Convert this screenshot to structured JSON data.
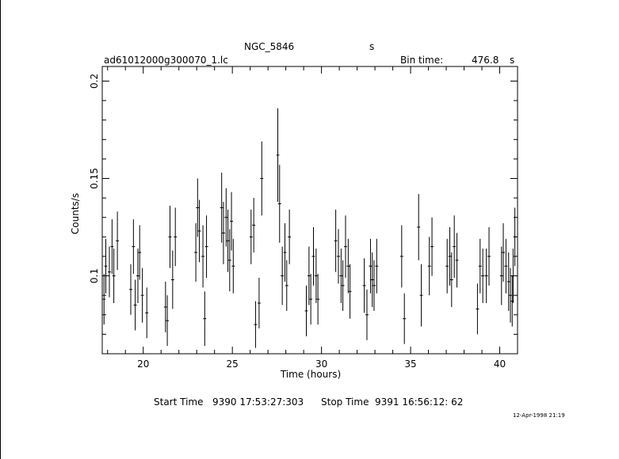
{
  "header": {
    "object": "NGC_5846",
    "object_unit": "s",
    "filename": "ad61012000g300070_1.lc",
    "bin_label": "Bin time:",
    "bin_value": "476.8",
    "bin_unit": "s"
  },
  "footer": {
    "start_label": "Start Time",
    "start_value": "9390 17:53:27:303",
    "stop_label": "Stop Time",
    "stop_value": "9391 16:56:12: 62",
    "stamp": "12-Apr-1998 21:19"
  },
  "chart_data": {
    "type": "scatter",
    "xlabel": "Time (hours)",
    "ylabel": "Counts/s",
    "xlim": [
      17.7,
      41.0
    ],
    "ylim": [
      0.06,
      0.2075
    ],
    "xticks": [
      20,
      25,
      30,
      35,
      40
    ],
    "yticks": [
      0.1,
      0.15,
      0.2
    ],
    "ytick_labels": [
      "0.1",
      "0.15",
      "0.2"
    ],
    "grid": false,
    "points": [
      [
        17.8,
        0.088,
        0.013
      ],
      [
        17.9,
        0.105,
        0.014
      ],
      [
        18.1,
        0.102,
        0.013
      ],
      [
        18.25,
        0.115,
        0.014
      ],
      [
        18.35,
        0.1,
        0.014
      ],
      [
        18.55,
        0.118,
        0.015
      ],
      [
        19.3,
        0.093,
        0.013
      ],
      [
        19.45,
        0.115,
        0.014
      ],
      [
        19.55,
        0.085,
        0.013
      ],
      [
        19.7,
        0.1,
        0.014
      ],
      [
        19.8,
        0.112,
        0.014
      ],
      [
        19.95,
        0.09,
        0.014
      ],
      [
        20.2,
        0.081,
        0.013
      ],
      [
        21.25,
        0.084,
        0.013
      ],
      [
        21.35,
        0.077,
        0.013
      ],
      [
        21.5,
        0.12,
        0.016
      ],
      [
        21.65,
        0.098,
        0.015
      ],
      [
        21.8,
        0.12,
        0.015
      ],
      [
        22.95,
        0.112,
        0.015
      ],
      [
        23.05,
        0.135,
        0.015
      ],
      [
        23.15,
        0.123,
        0.016
      ],
      [
        23.35,
        0.11,
        0.016
      ],
      [
        23.45,
        0.078,
        0.014
      ],
      [
        23.55,
        0.115,
        0.016
      ],
      [
        24.4,
        0.135,
        0.018
      ],
      [
        24.5,
        0.122,
        0.016
      ],
      [
        24.65,
        0.13,
        0.015
      ],
      [
        24.75,
        0.118,
        0.016
      ],
      [
        24.85,
        0.108,
        0.016
      ],
      [
        24.95,
        0.128,
        0.015
      ],
      [
        25.05,
        0.105,
        0.014
      ],
      [
        26.05,
        0.12,
        0.014
      ],
      [
        26.2,
        0.126,
        0.014
      ],
      [
        26.3,
        0.075,
        0.012
      ],
      [
        26.5,
        0.086,
        0.013
      ],
      [
        26.65,
        0.15,
        0.019
      ],
      [
        27.55,
        0.162,
        0.024
      ],
      [
        27.65,
        0.137,
        0.02
      ],
      [
        27.8,
        0.1,
        0.015
      ],
      [
        27.95,
        0.112,
        0.015
      ],
      [
        28.05,
        0.095,
        0.013
      ],
      [
        28.2,
        0.12,
        0.014
      ],
      [
        29.15,
        0.082,
        0.013
      ],
      [
        29.3,
        0.1,
        0.015
      ],
      [
        29.4,
        0.088,
        0.013
      ],
      [
        29.55,
        0.11,
        0.015
      ],
      [
        29.7,
        0.1,
        0.014
      ],
      [
        29.8,
        0.088,
        0.013
      ],
      [
        30.8,
        0.118,
        0.016
      ],
      [
        30.95,
        0.11,
        0.014
      ],
      [
        31.1,
        0.1,
        0.014
      ],
      [
        31.2,
        0.095,
        0.013
      ],
      [
        31.35,
        0.115,
        0.016
      ],
      [
        31.5,
        0.105,
        0.014
      ],
      [
        31.6,
        0.092,
        0.014
      ],
      [
        32.4,
        0.095,
        0.014
      ],
      [
        32.55,
        0.08,
        0.013
      ],
      [
        32.75,
        0.105,
        0.014
      ],
      [
        32.85,
        0.098,
        0.014
      ],
      [
        32.95,
        0.095,
        0.013
      ],
      [
        33.1,
        0.105,
        0.014
      ],
      [
        34.5,
        0.11,
        0.016
      ],
      [
        34.65,
        0.078,
        0.013
      ],
      [
        35.45,
        0.125,
        0.017
      ],
      [
        35.6,
        0.09,
        0.016
      ],
      [
        36.05,
        0.105,
        0.015
      ],
      [
        36.2,
        0.115,
        0.015
      ],
      [
        37.05,
        0.105,
        0.014
      ],
      [
        37.2,
        0.11,
        0.015
      ],
      [
        37.3,
        0.098,
        0.014
      ],
      [
        37.45,
        0.115,
        0.016
      ],
      [
        37.6,
        0.108,
        0.014
      ],
      [
        38.75,
        0.083,
        0.013
      ],
      [
        38.9,
        0.105,
        0.014
      ],
      [
        39.05,
        0.1,
        0.014
      ],
      [
        39.25,
        0.1,
        0.014
      ],
      [
        39.4,
        0.11,
        0.015
      ],
      [
        40.1,
        0.1,
        0.015
      ],
      [
        40.2,
        0.112,
        0.015
      ],
      [
        40.35,
        0.105,
        0.014
      ],
      [
        40.5,
        0.097,
        0.015
      ],
      [
        40.6,
        0.09,
        0.014
      ],
      [
        40.7,
        0.087,
        0.013
      ],
      [
        40.75,
        0.1,
        0.014
      ],
      [
        40.85,
        0.12,
        0.015
      ]
    ]
  }
}
